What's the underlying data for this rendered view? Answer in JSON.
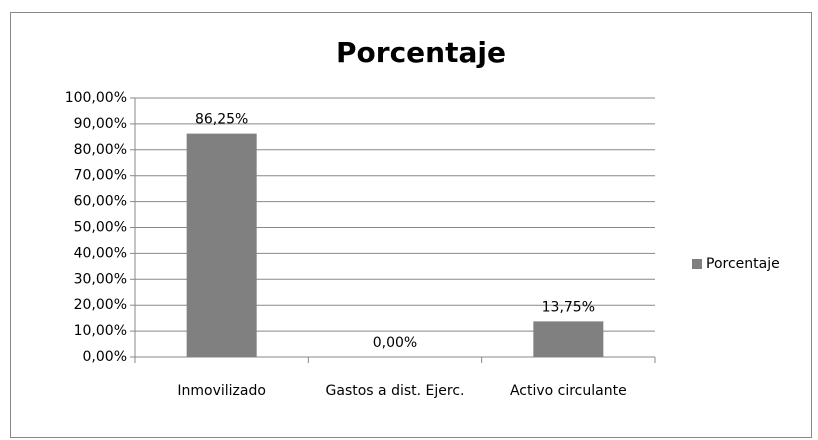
{
  "chart_data": {
    "type": "bar",
    "title": "Porcentaje",
    "categories": [
      "Inmovilizado",
      "Gastos a dist. Ejerc.",
      "Activo circulante"
    ],
    "series": [
      {
        "name": "Porcentaje",
        "color": "#808080",
        "values": [
          86.25,
          0,
          13.75
        ],
        "value_labels": [
          "86,25%",
          "0,00%",
          "13,75%"
        ]
      }
    ],
    "ylim": [
      0,
      100
    ],
    "yticks": [
      {
        "value": 0,
        "label": "0,00%"
      },
      {
        "value": 10,
        "label": "10,00%"
      },
      {
        "value": 20,
        "label": "20,00%"
      },
      {
        "value": 30,
        "label": "30,00%"
      },
      {
        "value": 40,
        "label": "40,00%"
      },
      {
        "value": 50,
        "label": "50,00%"
      },
      {
        "value": 60,
        "label": "60,00%"
      },
      {
        "value": 70,
        "label": "70,00%"
      },
      {
        "value": 80,
        "label": "80,00%"
      },
      {
        "value": 90,
        "label": "90,00%"
      },
      {
        "value": 100,
        "label": "100,00%"
      }
    ],
    "grid": true,
    "legend": "right"
  }
}
